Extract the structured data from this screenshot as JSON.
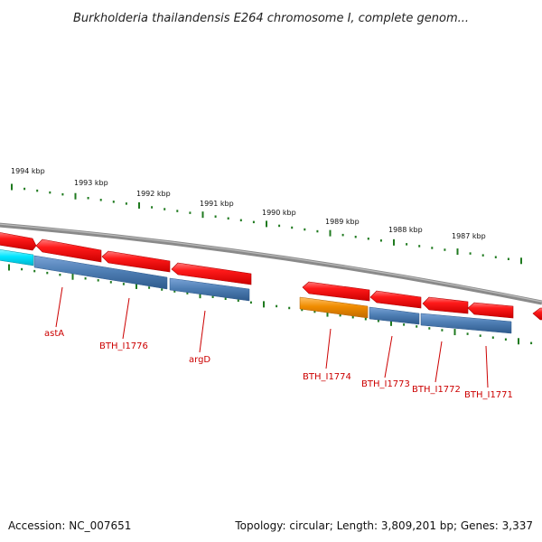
{
  "title": "Burkholderia thailandensis E264 chromosome I, complete genom...",
  "footer": {
    "accession": "Accession: NC_007651",
    "summary": "Topology: circular; Length: 3,809,201 bp; Genes: 3,337"
  },
  "ruler": {
    "labels": [
      "1994 kbp",
      "1993 kbp",
      "1992 kbp",
      "1991 kbp",
      "1990 kbp",
      "1989 kbp",
      "1988 kbp",
      "1987 kbp"
    ]
  },
  "gene_labels": [
    "astA",
    "BTH_I1776",
    "argD",
    "BTH_I1774",
    "BTH_I1773",
    "BTH_I1772",
    "BTH_I1771"
  ],
  "colors": {
    "backbone": "#8a8a8a",
    "gene_forward": "#ee0000",
    "gene_forward_highlight": "#ff6a6a",
    "cds_steel": "#4f7fb5",
    "cds_steel_dark": "#2e5a8c",
    "cds_cyan": "#00e5ff",
    "cds_orange": "#f08c00",
    "ticks": "#1f7a1f",
    "label": "#cc0000"
  }
}
